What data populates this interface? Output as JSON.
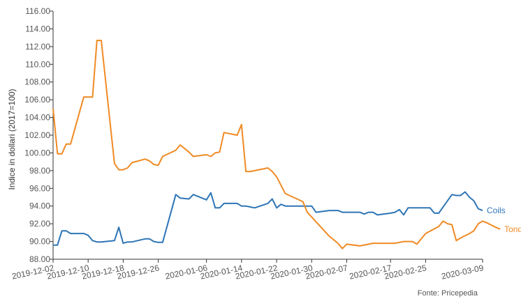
{
  "chart_data": {
    "type": "line",
    "ylabel": "Indice in dollari (2017=100)",
    "ylim": [
      88,
      116
    ],
    "yticks": [
      "88.00",
      "90.00",
      "92.00",
      "94.00",
      "96.00",
      "98.00",
      "100.00",
      "102.00",
      "104.00",
      "106.00",
      "108.00",
      "110.00",
      "112.00",
      "114.00",
      "116.00"
    ],
    "x_start": "2019-12-02",
    "x_end": "2020-03-09",
    "xticks": [
      "2019-12-02",
      "2019-12-10",
      "2019-12-18",
      "2019-12-26",
      "2020-01-06",
      "2020-01-14",
      "2020-01-22",
      "2020-01-30",
      "2020-02-07",
      "2020-02-17",
      "2020-02-25",
      "2020-03-09"
    ],
    "grid": false,
    "legend": "inline labels at line ends",
    "source": "Fonte: Pricepedia",
    "series": [
      {
        "name": "Coils",
        "color": "#2e75b6",
        "points": [
          [
            "2019-12-02",
            89.6
          ],
          [
            "2019-12-03",
            89.6
          ],
          [
            "2019-12-04",
            91.2
          ],
          [
            "2019-12-05",
            91.2
          ],
          [
            "2019-12-06",
            90.9
          ],
          [
            "2019-12-09",
            90.9
          ],
          [
            "2019-12-10",
            90.7
          ],
          [
            "2019-12-11",
            90.1
          ],
          [
            "2019-12-12",
            89.95
          ],
          [
            "2019-12-13",
            89.95
          ],
          [
            "2019-12-16",
            90.1
          ],
          [
            "2019-12-17",
            91.6
          ],
          [
            "2019-12-18",
            89.8
          ],
          [
            "2019-12-19",
            89.95
          ],
          [
            "2019-12-20",
            89.95
          ],
          [
            "2019-12-23",
            90.3
          ],
          [
            "2019-12-24",
            90.3
          ],
          [
            "2019-12-25",
            90.0
          ],
          [
            "2019-12-26",
            89.9
          ],
          [
            "2019-12-27",
            89.9
          ],
          [
            "2019-12-30",
            95.3
          ],
          [
            "2019-12-31",
            94.9
          ],
          [
            "2020-01-02",
            94.8
          ],
          [
            "2020-01-03",
            95.3
          ],
          [
            "2020-01-06",
            94.7
          ],
          [
            "2020-01-07",
            95.5
          ],
          [
            "2020-01-08",
            93.8
          ],
          [
            "2020-01-09",
            93.8
          ],
          [
            "2020-01-10",
            94.3
          ],
          [
            "2020-01-13",
            94.3
          ],
          [
            "2020-01-14",
            94.0
          ],
          [
            "2020-01-15",
            94.0
          ],
          [
            "2020-01-16",
            93.9
          ],
          [
            "2020-01-17",
            93.8
          ],
          [
            "2020-01-20",
            94.3
          ],
          [
            "2020-01-21",
            94.8
          ],
          [
            "2020-01-22",
            93.8
          ],
          [
            "2020-01-23",
            94.2
          ],
          [
            "2020-01-24",
            94.0
          ],
          [
            "2020-01-27",
            94.0
          ],
          [
            "2020-01-28",
            94.0
          ],
          [
            "2020-01-29",
            94.0
          ],
          [
            "2020-01-30",
            94.0
          ],
          [
            "2020-01-31",
            93.3
          ],
          [
            "2020-02-03",
            93.5
          ],
          [
            "2020-02-04",
            93.5
          ],
          [
            "2020-02-05",
            93.5
          ],
          [
            "2020-02-06",
            93.3
          ],
          [
            "2020-02-07",
            93.3
          ],
          [
            "2020-02-10",
            93.3
          ],
          [
            "2020-02-11",
            93.1
          ],
          [
            "2020-02-12",
            93.3
          ],
          [
            "2020-02-13",
            93.3
          ],
          [
            "2020-02-14",
            93.0
          ],
          [
            "2020-02-17",
            93.2
          ],
          [
            "2020-02-18",
            93.3
          ],
          [
            "2020-02-19",
            93.6
          ],
          [
            "2020-02-20",
            93.0
          ],
          [
            "2020-02-21",
            93.8
          ],
          [
            "2020-02-24",
            93.8
          ],
          [
            "2020-02-25",
            93.8
          ],
          [
            "2020-02-26",
            93.8
          ],
          [
            "2020-02-27",
            93.2
          ],
          [
            "2020-02-28",
            93.2
          ],
          [
            "2020-03-02",
            95.3
          ],
          [
            "2020-03-03",
            95.2
          ],
          [
            "2020-03-04",
            95.2
          ],
          [
            "2020-03-05",
            95.6
          ],
          [
            "2020-03-06",
            95.0
          ],
          [
            "2020-03-07",
            94.6
          ],
          [
            "2020-03-08",
            93.7
          ],
          [
            "2020-03-09",
            93.5
          ]
        ]
      },
      {
        "name": "Tondini",
        "color": "#f08a24",
        "points": [
          [
            "2019-12-02",
            105.0
          ],
          [
            "2019-12-03",
            99.9
          ],
          [
            "2019-12-04",
            99.9
          ],
          [
            "2019-12-05",
            101.0
          ],
          [
            "2019-12-06",
            101.0
          ],
          [
            "2019-12-09",
            106.3
          ],
          [
            "2019-12-10",
            106.3
          ],
          [
            "2019-12-11",
            106.3
          ],
          [
            "2019-12-12",
            112.7
          ],
          [
            "2019-12-13",
            112.7
          ],
          [
            "2019-12-16",
            98.8
          ],
          [
            "2019-12-17",
            98.1
          ],
          [
            "2019-12-18",
            98.1
          ],
          [
            "2019-12-19",
            98.3
          ],
          [
            "2019-12-20",
            98.9
          ],
          [
            "2019-12-23",
            99.3
          ],
          [
            "2019-12-24",
            99.1
          ],
          [
            "2019-12-25",
            98.7
          ],
          [
            "2019-12-26",
            98.6
          ],
          [
            "2019-12-27",
            99.6
          ],
          [
            "2019-12-30",
            100.3
          ],
          [
            "2019-12-31",
            100.9
          ],
          [
            "2020-01-02",
            100.1
          ],
          [
            "2020-01-03",
            99.6
          ],
          [
            "2020-01-06",
            99.8
          ],
          [
            "2020-01-07",
            99.6
          ],
          [
            "2020-01-08",
            100.0
          ],
          [
            "2020-01-09",
            100.1
          ],
          [
            "2020-01-10",
            102.3
          ],
          [
            "2020-01-13",
            102.0
          ],
          [
            "2020-01-14",
            103.2
          ],
          [
            "2020-01-15",
            97.9
          ],
          [
            "2020-01-16",
            97.9
          ],
          [
            "2020-01-17",
            98.0
          ],
          [
            "2020-01-20",
            98.3
          ],
          [
            "2020-01-21",
            97.9
          ],
          [
            "2020-01-22",
            97.3
          ],
          [
            "2020-01-24",
            95.4
          ],
          [
            "2020-01-28",
            94.5
          ],
          [
            "2020-01-29",
            93.3
          ],
          [
            "2020-02-03",
            90.6
          ],
          [
            "2020-02-05",
            89.8
          ],
          [
            "2020-02-06",
            89.2
          ],
          [
            "2020-02-07",
            89.7
          ],
          [
            "2020-02-10",
            89.5
          ],
          [
            "2020-02-12",
            89.7
          ],
          [
            "2020-02-13",
            89.8
          ],
          [
            "2020-02-17",
            89.8
          ],
          [
            "2020-02-18",
            89.8
          ],
          [
            "2020-02-20",
            90.0
          ],
          [
            "2020-02-22",
            90.0
          ],
          [
            "2020-02-23",
            89.7
          ],
          [
            "2020-02-25",
            90.9
          ],
          [
            "2020-02-28",
            91.7
          ],
          [
            "2020-02-29",
            92.3
          ],
          [
            "2020-03-01",
            92.0
          ],
          [
            "2020-03-02",
            91.9
          ],
          [
            "2020-03-03",
            90.1
          ],
          [
            "2020-03-04",
            90.4
          ],
          [
            "2020-03-06",
            90.9
          ],
          [
            "2020-03-07",
            91.2
          ],
          [
            "2020-03-08",
            92.0
          ],
          [
            "2020-03-09",
            92.3
          ],
          [
            "2020-03-10",
            92.1
          ],
          [
            "2020-03-12",
            91.6
          ],
          [
            "2020-03-13",
            91.4
          ]
        ]
      }
    ]
  }
}
